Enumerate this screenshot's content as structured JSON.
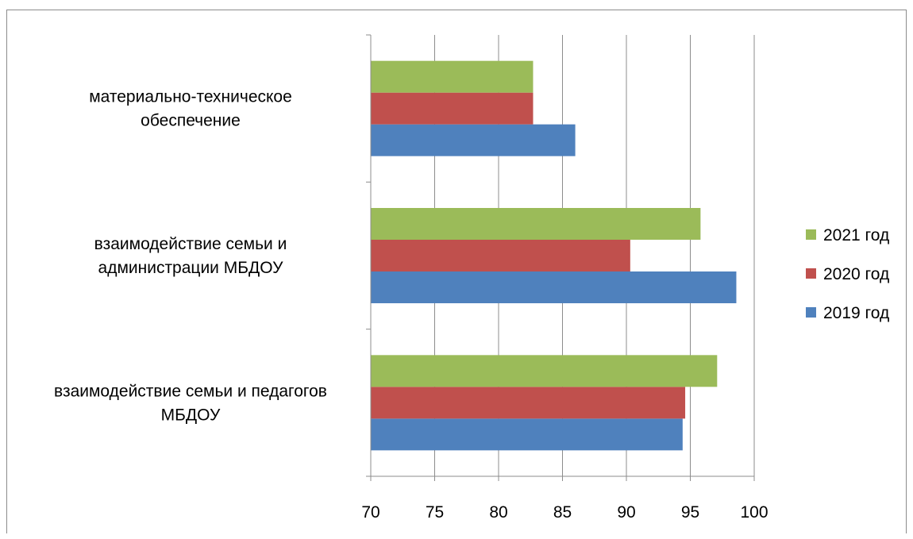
{
  "chart_data": {
    "type": "bar",
    "orientation": "horizontal",
    "categories": [
      [
        "взаимодействие семьи и педагогов",
        "МБДОУ"
      ],
      [
        "взаимодействие семьи и",
        "администрации МБДОУ"
      ],
      [
        "материально-техническое",
        "обеспечение"
      ]
    ],
    "series": [
      {
        "name": "2019 год",
        "color": "#4f81bd",
        "values": [
          94.4,
          98.6,
          86.0
        ]
      },
      {
        "name": "2020 год",
        "color": "#c0504d",
        "values": [
          94.6,
          90.3,
          82.7
        ]
      },
      {
        "name": "2021 год",
        "color": "#9bbb59",
        "values": [
          97.1,
          95.8,
          82.7
        ]
      }
    ],
    "xlim": [
      70,
      100
    ],
    "xticks": [
      "70",
      "75",
      "80",
      "85",
      "90",
      "95",
      "100"
    ],
    "grid": "vertical",
    "legend": "right",
    "legend_order": [
      "2021 год",
      "2020 год",
      "2019 год"
    ]
  }
}
